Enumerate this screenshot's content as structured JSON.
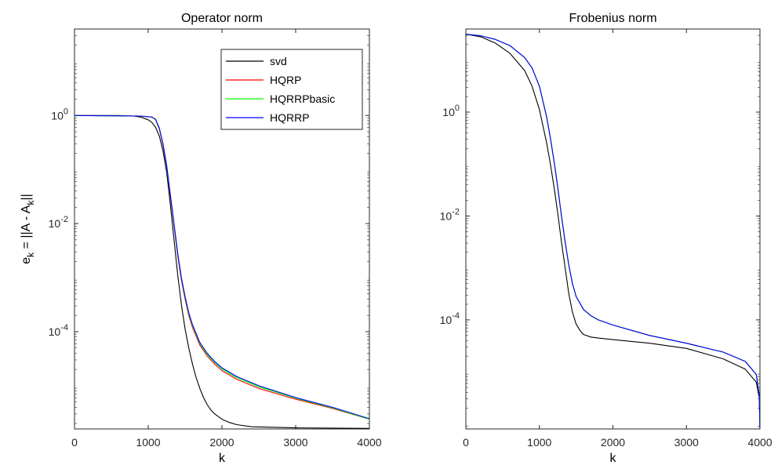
{
  "chart_data": [
    {
      "type": "line",
      "title": "Operator norm",
      "xlabel": "k",
      "ylabel": "e_k = ||A - A_k||",
      "ylabel_parts": {
        "e": "e",
        "k1": "k",
        "mid": " = ||A - A",
        "k2": "k",
        "end": "||"
      },
      "xlim": [
        0,
        4000
      ],
      "ylim_log10": [
        -5.8,
        1.6
      ],
      "yscale": "log",
      "xticks": [
        0,
        1000,
        2000,
        3000,
        4000
      ],
      "yticks_exp": [
        0,
        -2,
        -4
      ],
      "ytick_base": "10",
      "legend": {
        "placement": "top-right",
        "entries": [
          "svd",
          "HQRP",
          "HQRRPbasic",
          "HQRRP"
        ]
      },
      "series": [
        {
          "name": "svd",
          "color": "#000000",
          "x": [
            0,
            600,
            800,
            900,
            1000,
            1050,
            1100,
            1150,
            1200,
            1250,
            1300,
            1350,
            1400,
            1450,
            1500,
            1550,
            1600,
            1650,
            1700,
            1750,
            1800,
            1850,
            1900,
            2000,
            2100,
            2200,
            2400,
            3000,
            4000
          ],
          "log10_y": [
            0,
            0,
            -0.01,
            -0.03,
            -0.08,
            -0.13,
            -0.22,
            -0.38,
            -0.65,
            -1.05,
            -1.65,
            -2.3,
            -2.95,
            -3.5,
            -3.95,
            -4.3,
            -4.6,
            -4.85,
            -5.05,
            -5.22,
            -5.35,
            -5.45,
            -5.52,
            -5.62,
            -5.68,
            -5.72,
            -5.76,
            -5.78,
            -5.79
          ]
        },
        {
          "name": "HQRP",
          "color": "#ff0000",
          "x": [
            0,
            900,
            1050,
            1100,
            1150,
            1200,
            1250,
            1300,
            1350,
            1400,
            1450,
            1500,
            1550,
            1600,
            1700,
            1800,
            1900,
            2000,
            2200,
            2500,
            3000,
            3500,
            4000
          ],
          "log10_y": [
            0,
            -0.01,
            -0.03,
            -0.08,
            -0.25,
            -0.55,
            -0.95,
            -1.5,
            -2.05,
            -2.6,
            -3.05,
            -3.4,
            -3.7,
            -3.92,
            -4.25,
            -4.45,
            -4.6,
            -4.72,
            -4.88,
            -5.05,
            -5.25,
            -5.42,
            -5.62
          ]
        },
        {
          "name": "HQRRPbasic",
          "color": "#00ff00",
          "x": [
            0,
            900,
            1050,
            1100,
            1150,
            1200,
            1250,
            1300,
            1350,
            1400,
            1450,
            1500,
            1550,
            1600,
            1700,
            1800,
            1900,
            2000,
            2200,
            2500,
            3000,
            3500,
            4000
          ],
          "log10_y": [
            0,
            -0.01,
            -0.03,
            -0.08,
            -0.24,
            -0.53,
            -0.93,
            -1.47,
            -2.02,
            -2.57,
            -3.02,
            -3.37,
            -3.67,
            -3.89,
            -4.22,
            -4.42,
            -4.57,
            -4.69,
            -4.85,
            -5.02,
            -5.23,
            -5.41,
            -5.62
          ]
        },
        {
          "name": "HQRRP",
          "color": "#0000ff",
          "x": [
            0,
            900,
            1050,
            1100,
            1150,
            1200,
            1250,
            1300,
            1350,
            1400,
            1450,
            1500,
            1550,
            1600,
            1700,
            1800,
            1900,
            2000,
            2200,
            2500,
            3000,
            3500,
            4000
          ],
          "log10_y": [
            0,
            -0.01,
            -0.03,
            -0.07,
            -0.23,
            -0.52,
            -0.92,
            -1.46,
            -2.0,
            -2.55,
            -3.0,
            -3.35,
            -3.65,
            -3.87,
            -4.2,
            -4.4,
            -4.55,
            -4.67,
            -4.83,
            -5.0,
            -5.22,
            -5.4,
            -5.61
          ]
        }
      ]
    },
    {
      "type": "line",
      "title": "Frobenius norm",
      "xlabel": "k",
      "ylabel": "",
      "xlim": [
        0,
        4000
      ],
      "ylim_log10": [
        -6.1,
        1.6
      ],
      "yscale": "log",
      "xticks": [
        0,
        1000,
        2000,
        3000,
        4000
      ],
      "yticks_exp": [
        0,
        -2,
        -4
      ],
      "ytick_base": "10",
      "series": [
        {
          "name": "svd",
          "color": "#000000",
          "x": [
            0,
            200,
            400,
            600,
            800,
            900,
            1000,
            1100,
            1150,
            1200,
            1250,
            1300,
            1350,
            1400,
            1450,
            1500,
            1550,
            1600,
            1700,
            1800,
            2000,
            2500,
            3000,
            3500,
            3800,
            3950,
            3990,
            4000
          ],
          "log10_y": [
            1.5,
            1.45,
            1.33,
            1.13,
            0.8,
            0.5,
            0.05,
            -0.6,
            -1.0,
            -1.45,
            -1.95,
            -2.5,
            -3.0,
            -3.5,
            -3.85,
            -4.08,
            -4.2,
            -4.28,
            -4.33,
            -4.35,
            -4.38,
            -4.45,
            -4.55,
            -4.75,
            -4.95,
            -5.2,
            -5.5,
            -6.1
          ]
        },
        {
          "name": "HQRP",
          "color": "#ff0000",
          "x": [
            0,
            200,
            400,
            600,
            800,
            900,
            1000,
            1100,
            1150,
            1200,
            1250,
            1300,
            1350,
            1400,
            1450,
            1500,
            1600,
            1700,
            1800,
            2000,
            2500,
            3000,
            3500,
            3800,
            3950,
            3990,
            4000
          ],
          "log10_y": [
            1.5,
            1.47,
            1.4,
            1.28,
            1.05,
            0.85,
            0.5,
            -0.1,
            -0.5,
            -0.95,
            -1.45,
            -2.0,
            -2.5,
            -2.95,
            -3.3,
            -3.55,
            -3.8,
            -3.92,
            -4.0,
            -4.1,
            -4.3,
            -4.45,
            -4.62,
            -4.8,
            -5.05,
            -5.45,
            -6.1
          ]
        },
        {
          "name": "HQRRPbasic",
          "color": "#00ff00",
          "x": [
            0,
            200,
            400,
            600,
            800,
            900,
            1000,
            1100,
            1150,
            1200,
            1250,
            1300,
            1350,
            1400,
            1450,
            1500,
            1600,
            1700,
            1800,
            2000,
            2500,
            3000,
            3500,
            3800,
            3950,
            3990,
            4000
          ],
          "log10_y": [
            1.5,
            1.47,
            1.4,
            1.28,
            1.05,
            0.85,
            0.5,
            -0.1,
            -0.5,
            -0.95,
            -1.45,
            -2.0,
            -2.5,
            -2.95,
            -3.3,
            -3.55,
            -3.8,
            -3.92,
            -4.0,
            -4.1,
            -4.3,
            -4.45,
            -4.62,
            -4.8,
            -5.05,
            -5.45,
            -6.1
          ]
        },
        {
          "name": "HQRRP",
          "color": "#0000ff",
          "x": [
            0,
            200,
            400,
            600,
            800,
            900,
            1000,
            1100,
            1150,
            1200,
            1250,
            1300,
            1350,
            1400,
            1450,
            1500,
            1600,
            1700,
            1800,
            2000,
            2500,
            3000,
            3500,
            3800,
            3950,
            3990,
            4000
          ],
          "log10_y": [
            1.5,
            1.47,
            1.4,
            1.28,
            1.05,
            0.85,
            0.5,
            -0.1,
            -0.5,
            -0.95,
            -1.45,
            -2.0,
            -2.5,
            -2.95,
            -3.3,
            -3.55,
            -3.8,
            -3.92,
            -4.0,
            -4.1,
            -4.3,
            -4.45,
            -4.62,
            -4.8,
            -5.05,
            -5.45,
            -6.1
          ]
        }
      ]
    }
  ]
}
